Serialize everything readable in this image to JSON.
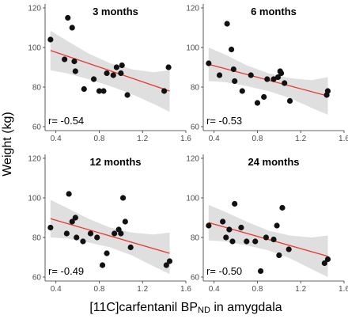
{
  "figure": {
    "ylabel": "Weight (kg)",
    "xlabel_main": "[11C]carfentanil BP",
    "xlabel_sub": "ND",
    "xlabel_tail": " in amygdala"
  },
  "colors": {
    "point": "#111111",
    "fit_line": "#e8372c",
    "confidence_band": "#d9d9d9",
    "panel_background": "#ffffff",
    "axis": "#333333"
  },
  "chart_data": [
    {
      "type": "scatter",
      "title": "3 months",
      "annotation": "r= -0.54",
      "xlim": [
        0.3,
        1.6
      ],
      "ylim": [
        58,
        122
      ],
      "x_ticks": [
        0.4,
        0.8,
        1.2,
        1.6
      ],
      "y_ticks": [
        60,
        80,
        100,
        120
      ],
      "x_tick_labels": [
        "0.4",
        "0.8",
        "1.2",
        "1.6"
      ],
      "y_tick_labels": [
        "60",
        "80",
        "100",
        "120"
      ],
      "points": [
        [
          0.35,
          104
        ],
        [
          0.48,
          94
        ],
        [
          0.51,
          115
        ],
        [
          0.55,
          110
        ],
        [
          0.57,
          93
        ],
        [
          0.58,
          88
        ],
        [
          0.66,
          79
        ],
        [
          0.75,
          84
        ],
        [
          0.8,
          78
        ],
        [
          0.84,
          78
        ],
        [
          0.87,
          87
        ],
        [
          0.93,
          86
        ],
        [
          0.96,
          90
        ],
        [
          1.0,
          87
        ],
        [
          1.01,
          91
        ],
        [
          1.06,
          76
        ],
        [
          1.4,
          78
        ],
        [
          1.44,
          90
        ]
      ],
      "fit": {
        "x": [
          0.35,
          1.45
        ],
        "y": [
          98.5,
          78.0
        ]
      },
      "band": {
        "x": [
          0.35,
          0.5,
          0.7,
          0.9,
          1.1,
          1.3,
          1.45
        ],
        "lower": [
          88.5,
          87.0,
          84.0,
          80.5,
          76.5,
          71.5,
          67.5
        ],
        "upper": [
          108.5,
          103.5,
          97.0,
          92.0,
          89.0,
          87.5,
          88.5
        ]
      }
    },
    {
      "type": "scatter",
      "title": "6 months",
      "annotation": "r= -0.53",
      "xlim": [
        0.3,
        1.6
      ],
      "ylim": [
        58,
        122
      ],
      "x_ticks": [
        0.4,
        0.8,
        1.2,
        1.6
      ],
      "y_ticks": [
        60,
        80,
        100,
        120
      ],
      "x_tick_labels": [
        "0.4",
        "0.8",
        "1.2",
        "1.6"
      ],
      "y_tick_labels": [
        "60",
        "80",
        "100",
        "120"
      ],
      "points": [
        [
          0.35,
          92
        ],
        [
          0.45,
          86
        ],
        [
          0.52,
          112
        ],
        [
          0.56,
          99
        ],
        [
          0.58,
          89
        ],
        [
          0.59,
          83
        ],
        [
          0.66,
          78
        ],
        [
          0.74,
          86
        ],
        [
          0.8,
          72
        ],
        [
          0.86,
          75
        ],
        [
          0.89,
          84
        ],
        [
          0.95,
          84
        ],
        [
          0.99,
          85
        ],
        [
          1.01,
          88
        ],
        [
          1.02,
          87
        ],
        [
          1.05,
          82
        ],
        [
          1.1,
          73
        ],
        [
          1.44,
          76
        ],
        [
          1.45,
          78
        ]
      ],
      "fit": {
        "x": [
          0.35,
          1.45
        ],
        "y": [
          91.5,
          75.5
        ]
      },
      "band": {
        "x": [
          0.35,
          0.5,
          0.7,
          0.9,
          1.1,
          1.3,
          1.45
        ],
        "lower": [
          83.0,
          82.5,
          80.5,
          78.0,
          74.5,
          69.5,
          66.0
        ],
        "upper": [
          100.0,
          96.5,
          91.0,
          87.0,
          84.5,
          83.5,
          85.0
        ]
      }
    },
    {
      "type": "scatter",
      "title": "12 months",
      "annotation": "r= -0.49",
      "xlim": [
        0.3,
        1.6
      ],
      "ylim": [
        58,
        122
      ],
      "x_ticks": [
        0.4,
        0.8,
        1.2,
        1.6
      ],
      "y_ticks": [
        60,
        80,
        100,
        120
      ],
      "x_tick_labels": [
        "0.4",
        "0.8",
        "1.2",
        "1.6"
      ],
      "y_tick_labels": [
        "60",
        "80",
        "100",
        "120"
      ],
      "points": [
        [
          0.35,
          85
        ],
        [
          0.5,
          82
        ],
        [
          0.52,
          102
        ],
        [
          0.55,
          88
        ],
        [
          0.58,
          90
        ],
        [
          0.59,
          80
        ],
        [
          0.65,
          78
        ],
        [
          0.72,
          82
        ],
        [
          0.78,
          80
        ],
        [
          0.83,
          66
        ],
        [
          0.87,
          72
        ],
        [
          0.94,
          82
        ],
        [
          0.98,
          84
        ],
        [
          1.0,
          82
        ],
        [
          1.02,
          100
        ],
        [
          1.04,
          88
        ],
        [
          1.09,
          75
        ],
        [
          1.42,
          66
        ],
        [
          1.45,
          68
        ]
      ],
      "fit": {
        "x": [
          0.35,
          1.45
        ],
        "y": [
          89.5,
          72.0
        ]
      },
      "band": {
        "x": [
          0.35,
          0.5,
          0.7,
          0.9,
          1.1,
          1.3,
          1.45
        ],
        "lower": [
          80.0,
          79.5,
          77.5,
          75.0,
          71.0,
          65.5,
          61.5
        ],
        "upper": [
          99.0,
          95.0,
          89.5,
          85.0,
          82.5,
          81.5,
          82.5
        ]
      }
    },
    {
      "type": "scatter",
      "title": "24 months",
      "annotation": "r= -0.50",
      "xlim": [
        0.3,
        1.6
      ],
      "ylim": [
        58,
        122
      ],
      "x_ticks": [
        0.4,
        0.8,
        1.2,
        1.6
      ],
      "y_ticks": [
        60,
        80,
        100,
        120
      ],
      "x_tick_labels": [
        "0.4",
        "0.8",
        "1.2",
        "1.6"
      ],
      "y_tick_labels": [
        "60",
        "80",
        "100",
        "120"
      ],
      "points": [
        [
          0.35,
          86
        ],
        [
          0.48,
          88
        ],
        [
          0.51,
          80
        ],
        [
          0.54,
          84
        ],
        [
          0.57,
          78
        ],
        [
          0.59,
          97
        ],
        [
          0.65,
          85
        ],
        [
          0.7,
          78
        ],
        [
          0.78,
          78
        ],
        [
          0.83,
          63
        ],
        [
          0.88,
          80
        ],
        [
          0.95,
          79
        ],
        [
          0.98,
          86
        ],
        [
          1.0,
          71
        ],
        [
          1.03,
          95
        ],
        [
          1.09,
          74
        ],
        [
          1.42,
          67
        ],
        [
          1.45,
          69
        ]
      ],
      "fit": {
        "x": [
          0.35,
          1.45
        ],
        "y": [
          87.5,
          70.5
        ]
      },
      "band": {
        "x": [
          0.35,
          0.5,
          0.7,
          0.9,
          1.1,
          1.3,
          1.45
        ],
        "lower": [
          78.5,
          78.0,
          76.0,
          73.5,
          69.5,
          64.0,
          60.0
        ],
        "upper": [
          96.5,
          93.0,
          88.0,
          83.5,
          81.0,
          80.0,
          81.0
        ]
      }
    }
  ]
}
